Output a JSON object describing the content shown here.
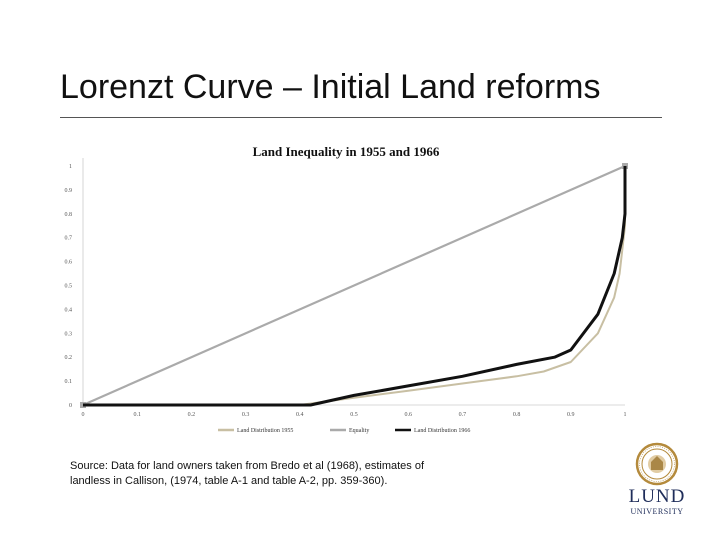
{
  "slide": {
    "title": "Lorenzt Curve – Initial Land reforms",
    "source": "Source: Data for land owners taken from Bredo et al (1968), estimates of landless in Callison, (1974, table A-1 and table A-2, pp. 359-360)."
  },
  "logo": {
    "name": "LUND",
    "subtitle": "UNIVERSITY"
  },
  "chart_data": {
    "type": "line",
    "title": "Land Inequality in 1955 and 1966",
    "xlabel": "",
    "ylabel": "",
    "xlim": [
      0,
      1
    ],
    "ylim": [
      0,
      1
    ],
    "x_ticks": [
      "0",
      "0.1",
      "0.2",
      "0.3",
      "0.4",
      "0.5",
      "0.6",
      "0.7",
      "0.8",
      "0.9",
      "1"
    ],
    "y_ticks": [
      "0",
      "0.1",
      "0.2",
      "0.3",
      "0.4",
      "0.5",
      "0.6",
      "0.7",
      "0.8",
      "0.9",
      "1"
    ],
    "legend_position": "bottom",
    "series": [
      {
        "name": "Land Distribution 1955",
        "color": "#c8bfa3",
        "x": [
          0,
          0.4,
          0.5,
          0.6,
          0.7,
          0.8,
          0.85,
          0.9,
          0.95,
          0.98,
          0.99,
          1.0,
          1.0
        ],
        "y": [
          0,
          0,
          0.03,
          0.06,
          0.09,
          0.12,
          0.14,
          0.18,
          0.3,
          0.45,
          0.55,
          0.75,
          1.0
        ]
      },
      {
        "name": "Equality",
        "color": "#aaaaaa",
        "x": [
          0,
          1
        ],
        "y": [
          0,
          1
        ]
      },
      {
        "name": "Land Distribution 1966",
        "color": "#111111",
        "x": [
          0,
          0.42,
          0.5,
          0.6,
          0.7,
          0.8,
          0.87,
          0.9,
          0.95,
          0.98,
          0.995,
          1.0,
          1.0
        ],
        "y": [
          0,
          0,
          0.04,
          0.08,
          0.12,
          0.17,
          0.2,
          0.23,
          0.38,
          0.55,
          0.7,
          0.8,
          1.0
        ]
      }
    ]
  }
}
